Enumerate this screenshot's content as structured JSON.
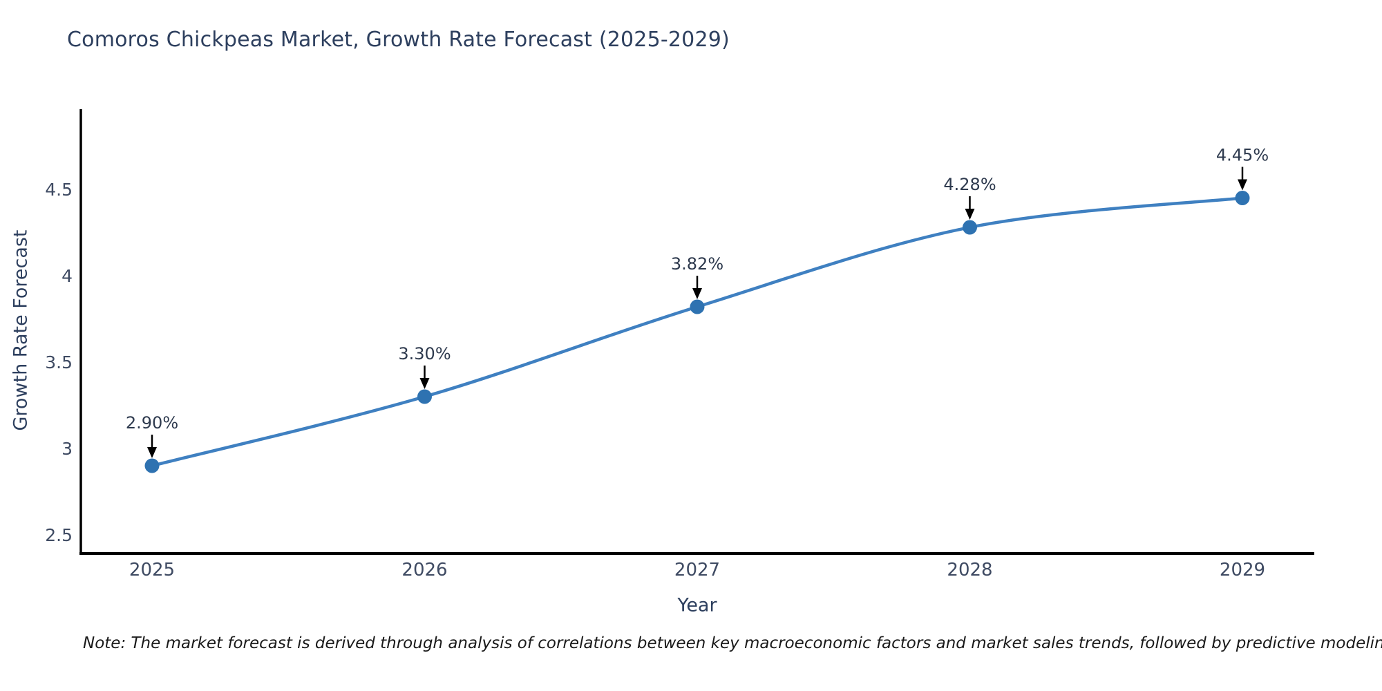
{
  "title": "Comoros Chickpeas Market, Growth Rate Forecast (2025-2029)",
  "note": "Note: The market forecast is derived through analysis of correlations between key macroeconomic factors and market sales trends, followed by predictive modeling to project future sales",
  "colors": {
    "line": "#3f80c1",
    "marker": "#2e72b1",
    "axis_line": "#000000",
    "arrow": "#000000",
    "title_text": "#2d3f5e",
    "tick_text": "#3f4b63",
    "annotation_text": "#2e3a4e",
    "note_text": "#1a1a1a",
    "background": "#ffffff"
  },
  "chart_data": {
    "type": "line",
    "title": "Comoros Chickpeas Market, Growth Rate Forecast (2025-2029)",
    "xlabel": "Year",
    "ylabel": "Growth Rate Forecast",
    "categories": [
      "2025",
      "2026",
      "2027",
      "2028",
      "2029"
    ],
    "values": [
      2.9,
      3.3,
      3.82,
      4.28,
      4.45
    ],
    "point_labels": [
      "2.90%",
      "3.30%",
      "3.82%",
      "4.28%",
      "4.45%"
    ],
    "series_name": "Growth Rate Forecast",
    "y_tick_values": [
      4.5,
      4.0,
      3.5,
      3.0,
      2.5
    ],
    "y_tick_labels": [
      "4.5",
      "4",
      "3.5",
      "3",
      "2.5"
    ],
    "ylim": [
      2.4,
      4.97
    ],
    "xlim_padding_years": 0.26,
    "grid": false,
    "legend": false,
    "line_shape": "spline",
    "marker_style": "circle",
    "annotation_style": "value-label-with-down-arrow"
  }
}
